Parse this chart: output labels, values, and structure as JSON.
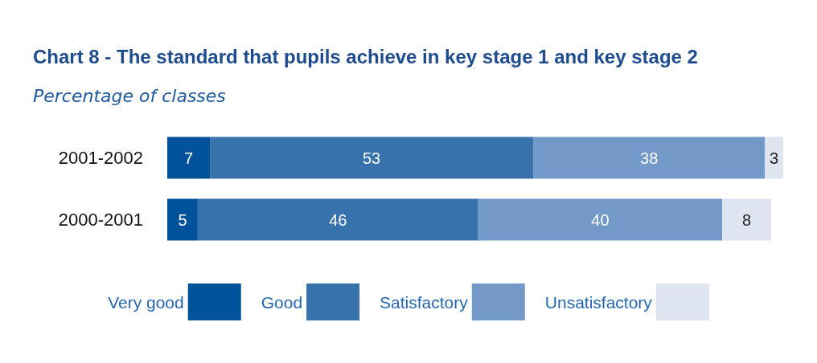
{
  "chart_data": {
    "type": "bar",
    "orientation": "horizontal",
    "stacked": true,
    "title": "Chart 8 - The standard that pupils achieve in key stage 1 and key stage 2",
    "subtitle": "Percentage of classes",
    "categories": [
      "2001-2002",
      "2000-2001"
    ],
    "series": [
      {
        "name": "Very good",
        "color": "#00539b",
        "values": [
          7,
          5
        ]
      },
      {
        "name": "Good",
        "color": "#3872ac",
        "values": [
          53,
          46
        ]
      },
      {
        "name": "Satisfactory",
        "color": "#7399c8",
        "values": [
          38,
          40
        ]
      },
      {
        "name": "Unsatisfactory",
        "color": "#dee4f0",
        "values": [
          3,
          8
        ]
      }
    ],
    "data_labels": true,
    "legend": "bottom"
  }
}
